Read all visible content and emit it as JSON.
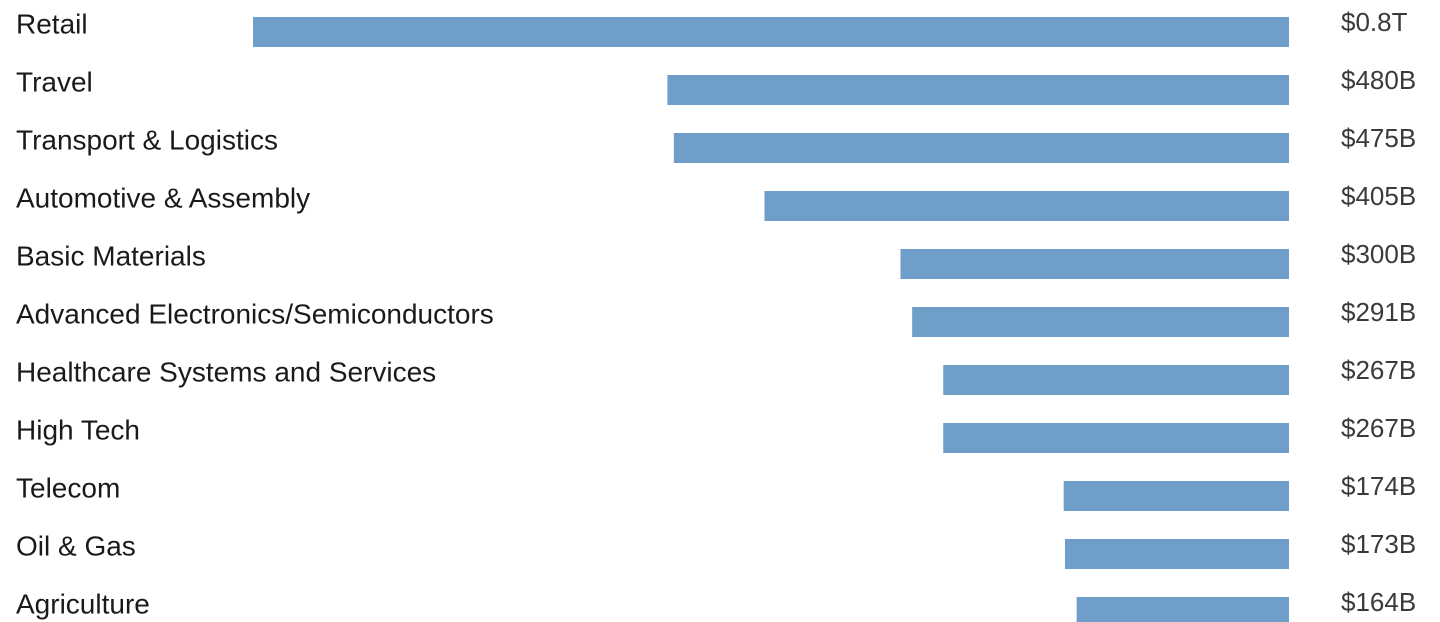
{
  "chart_data": {
    "type": "bar",
    "orientation": "horizontal",
    "bar_anchor": "right",
    "bar_color": "#6f9fc8",
    "grid": false,
    "categories": [
      "Retail",
      "Travel",
      "Transport & Logistics",
      "Automotive & Assembly",
      "Basic Materials",
      "Advanced Electronics/Semiconductors",
      "Healthcare Systems and Services",
      "High Tech",
      "Telecom",
      "Oil & Gas",
      "Agriculture"
    ],
    "values": [
      800,
      480,
      475,
      405,
      300,
      291,
      267,
      267,
      174,
      173,
      164
    ],
    "value_labels": [
      "$0.8T",
      "$480B",
      "$475B",
      "$405B",
      "$300B",
      "$291B",
      "$267B",
      "$267B",
      "$174B",
      "$173B",
      "$164B"
    ]
  }
}
